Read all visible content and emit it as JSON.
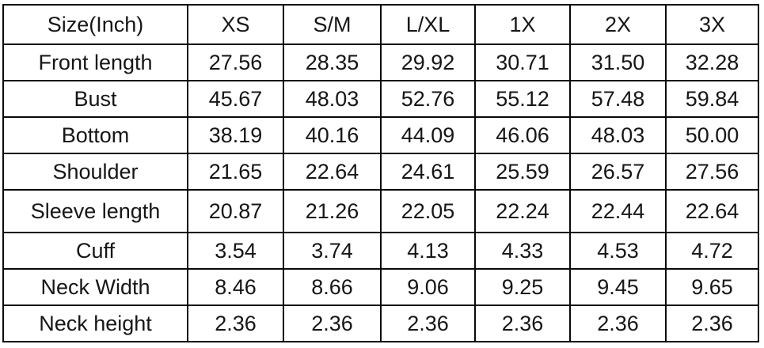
{
  "colors": {
    "background": "#ffffff",
    "grid_border": "#0a0a0a",
    "text": "#161616"
  },
  "chart_data": {
    "type": "table",
    "title": "Size(Inch)",
    "unit": "Inch",
    "columns": [
      "Size(Inch)",
      "XS",
      "S/M",
      "L/XL",
      "1X",
      "2X",
      "3X"
    ],
    "rows": [
      {
        "label": "Front length",
        "values": [
          "27.56",
          "28.35",
          "29.92",
          "30.71",
          "31.50",
          "32.28"
        ]
      },
      {
        "label": "Bust",
        "values": [
          "45.67",
          "48.03",
          "52.76",
          "55.12",
          "57.48",
          "59.84"
        ]
      },
      {
        "label": "Bottom",
        "values": [
          "38.19",
          "40.16",
          "44.09",
          "46.06",
          "48.03",
          "50.00"
        ]
      },
      {
        "label": "Shoulder",
        "values": [
          "21.65",
          "22.64",
          "24.61",
          "25.59",
          "26.57",
          "27.56"
        ]
      },
      {
        "label": "Sleeve length",
        "values": [
          "20.87",
          "21.26",
          "22.05",
          "22.24",
          "22.44",
          "22.64"
        ]
      },
      {
        "label": "Cuff",
        "values": [
          "3.54",
          "3.74",
          "4.13",
          "4.33",
          "4.53",
          "4.72"
        ]
      },
      {
        "label": "Neck Width",
        "values": [
          "8.46",
          "8.66",
          "9.06",
          "9.25",
          "9.45",
          "9.65"
        ]
      },
      {
        "label": "Neck height",
        "values": [
          "2.36",
          "2.36",
          "2.36",
          "2.36",
          "2.36",
          "2.36"
        ]
      }
    ]
  }
}
